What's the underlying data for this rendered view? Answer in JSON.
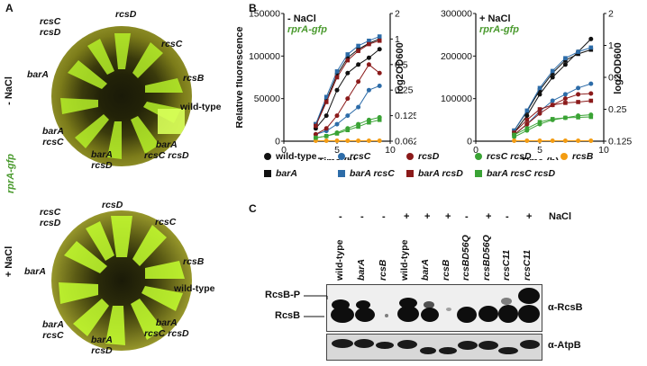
{
  "panels": {
    "a": "A",
    "b": "B",
    "c": "C"
  },
  "panel_a": {
    "condition_minus": "- NaCl",
    "condition_plus": "+ NaCl",
    "reporter": "rprA-gfp",
    "top_plate_labels": [
      {
        "text": "rcsC",
        "line2": "rcsD",
        "italic": true
      },
      {
        "text": "rcsD",
        "line2": "",
        "italic": true
      },
      {
        "text": "rcsC",
        "line2": "",
        "italic": true
      },
      {
        "text": "rcsB",
        "line2": "",
        "italic": true
      },
      {
        "text": "wild-type",
        "line2": "",
        "italic": false
      },
      {
        "text": "barA",
        "line2": "rcsC rcsD",
        "italic": true
      },
      {
        "text": "barA",
        "line2": "rcsD",
        "italic": true
      },
      {
        "text": "barA",
        "line2": "rcsC",
        "italic": true
      },
      {
        "text": "barA",
        "line2": "",
        "italic": true
      }
    ],
    "bottom_plate_labels": [
      {
        "text": "rcsC",
        "line2": "rcsD",
        "italic": true
      },
      {
        "text": "rcsD",
        "line2": "",
        "italic": true
      },
      {
        "text": "rcsC",
        "line2": "",
        "italic": true
      },
      {
        "text": "rcsB",
        "line2": "",
        "italic": true
      },
      {
        "text": "wild-type",
        "line2": "",
        "italic": false
      },
      {
        "text": "barA",
        "line2": "rcsC rcsD",
        "italic": true
      },
      {
        "text": "barA",
        "line2": "rcsD",
        "italic": true
      },
      {
        "text": "barA",
        "line2": "rcsC",
        "italic": true
      },
      {
        "text": "barA",
        "line2": "",
        "italic": true
      }
    ]
  },
  "chart_data": [
    {
      "type": "line",
      "condition": "- NaCl",
      "reporter": "rprA-gfp",
      "xlabel": "Time (h)",
      "ylabel": "Relative fluorescence",
      "y2label": "log2OD600",
      "xlim": [
        0,
        10
      ],
      "ylim": [
        0,
        150000
      ],
      "x_ticks": [
        0,
        5,
        10
      ],
      "y_ticks": [
        "0",
        "50000",
        "100000",
        "150000"
      ],
      "y2_ticks": [
        "2",
        "1",
        "0.5",
        "0.25",
        "0.125",
        "0.0625"
      ],
      "x": [
        3,
        4,
        5,
        6,
        7,
        8,
        9
      ],
      "series": [
        {
          "name": "wild-type",
          "marker": "circle",
          "color": "#111111",
          "values": [
            15000,
            30000,
            60000,
            80000,
            90000,
            98000,
            108000
          ]
        },
        {
          "name": "rcsC",
          "marker": "circle",
          "color": "#2d6ca8",
          "values": [
            8000,
            12000,
            20000,
            30000,
            40000,
            60000,
            65000
          ]
        },
        {
          "name": "rcsD",
          "marker": "circle",
          "color": "#8b1a1a",
          "values": [
            8000,
            15000,
            30000,
            50000,
            70000,
            90000,
            80000
          ]
        },
        {
          "name": "rcsC rcsD",
          "marker": "circle",
          "color": "#3aa335",
          "values": [
            4000,
            6000,
            10000,
            15000,
            20000,
            25000,
            28000
          ]
        },
        {
          "name": "rcsB",
          "marker": "circle",
          "color": "#f39c12",
          "values": [
            500,
            500,
            500,
            500,
            500,
            500,
            500
          ]
        },
        {
          "name": "barA",
          "marker": "square",
          "color": "#111111",
          "values": [
            20000,
            48000,
            78000,
            98000,
            108000,
            115000,
            120000
          ]
        },
        {
          "name": "barA rcsC",
          "marker": "square",
          "color": "#2d6ca8",
          "values": [
            20000,
            52000,
            82000,
            102000,
            112000,
            118000,
            123000
          ]
        },
        {
          "name": "barA rcsD",
          "marker": "square",
          "color": "#8b1a1a",
          "values": [
            18000,
            46000,
            75000,
            95000,
            106000,
            114000,
            118000
          ]
        },
        {
          "name": "barA rcsC rcsD",
          "marker": "square",
          "color": "#3aa335",
          "values": [
            4000,
            6000,
            9000,
            13000,
            17000,
            22000,
            25000
          ]
        }
      ]
    },
    {
      "type": "line",
      "condition": "+ NaCl",
      "reporter": "rprA-gfp",
      "xlabel": "Time (h)",
      "ylabel": "",
      "y2label": "log2OD600",
      "xlim": [
        0,
        10
      ],
      "ylim": [
        0,
        300000
      ],
      "x_ticks": [
        0,
        5,
        10
      ],
      "y_ticks": [
        "0",
        "100000",
        "200000",
        "300000"
      ],
      "y2_ticks": [
        "2",
        "1",
        "0.5",
        "0.25",
        "0.125"
      ],
      "x": [
        3,
        4,
        5,
        6,
        7,
        8,
        9
      ],
      "series": [
        {
          "name": "wild-type",
          "marker": "circle",
          "color": "#111111",
          "values": [
            20000,
            60000,
            110000,
            150000,
            180000,
            210000,
            240000
          ]
        },
        {
          "name": "rcsC",
          "marker": "circle",
          "color": "#2d6ca8",
          "values": [
            15000,
            40000,
            70000,
            95000,
            110000,
            125000,
            135000
          ]
        },
        {
          "name": "rcsD",
          "marker": "circle",
          "color": "#8b1a1a",
          "values": [
            15000,
            40000,
            65000,
            85000,
            100000,
            110000,
            112000
          ]
        },
        {
          "name": "rcsC rcsD",
          "marker": "circle",
          "color": "#3aa335",
          "values": [
            10000,
            25000,
            40000,
            50000,
            55000,
            60000,
            62000
          ]
        },
        {
          "name": "rcsB",
          "marker": "circle",
          "color": "#f39c12",
          "values": [
            1000,
            1000,
            1000,
            1000,
            1000,
            1000,
            1000
          ]
        },
        {
          "name": "barA",
          "marker": "square",
          "color": "#111111",
          "values": [
            25000,
            70000,
            120000,
            160000,
            190000,
            205000,
            215000
          ]
        },
        {
          "name": "barA rcsC",
          "marker": "square",
          "color": "#2d6ca8",
          "values": [
            25000,
            72000,
            125000,
            165000,
            195000,
            210000,
            220000
          ]
        },
        {
          "name": "barA rcsD",
          "marker": "square",
          "color": "#8b1a1a",
          "values": [
            20000,
            50000,
            75000,
            85000,
            90000,
            92000,
            95000
          ]
        },
        {
          "name": "barA rcsC rcsD",
          "marker": "square",
          "color": "#3aa335",
          "values": [
            15000,
            30000,
            45000,
            52000,
            55000,
            56000,
            57000
          ]
        }
      ]
    }
  ],
  "legend": [
    {
      "name": "wild-type",
      "marker": "circle",
      "color": "#111111",
      "italic": false
    },
    {
      "name": "rcsC",
      "marker": "circle",
      "color": "#2d6ca8",
      "italic": true
    },
    {
      "name": "rcsD",
      "marker": "circle",
      "color": "#8b1a1a",
      "italic": true
    },
    {
      "name": "rcsC rcsD",
      "marker": "circle",
      "color": "#3aa335",
      "italic": true
    },
    {
      "name": "rcsB",
      "marker": "circle",
      "color": "#f39c12",
      "italic": true
    },
    {
      "name": "barA",
      "marker": "square",
      "color": "#111111",
      "italic": true
    },
    {
      "name": "barA rcsC",
      "marker": "square",
      "color": "#2d6ca8",
      "italic": true
    },
    {
      "name": "barA rcsD",
      "marker": "square",
      "color": "#8b1a1a",
      "italic": true
    },
    {
      "name": "barA rcsC rcsD",
      "marker": "square",
      "color": "#3aa335",
      "italic": true
    }
  ],
  "panel_c": {
    "nacl_label": "NaCl",
    "lanes": [
      {
        "label": "wild-type",
        "italic": false,
        "nacl": "-"
      },
      {
        "label": "barA",
        "italic": true,
        "nacl": "-"
      },
      {
        "label": "rcsB",
        "italic": true,
        "nacl": "-"
      },
      {
        "label": "wild-type",
        "italic": false,
        "nacl": "+"
      },
      {
        "label": "barA",
        "italic": true,
        "nacl": "+"
      },
      {
        "label": "rcsB",
        "italic": true,
        "nacl": "+"
      },
      {
        "label": "rcsBD56Q",
        "italic": true,
        "nacl": "-"
      },
      {
        "label": "rcsBD56Q",
        "italic": true,
        "nacl": "+"
      },
      {
        "label": "rcsC11",
        "italic": true,
        "nacl": "-"
      },
      {
        "label": "rcsC11",
        "italic": true,
        "nacl": "+"
      }
    ],
    "band_labels": {
      "rcsb_p": "RcsB-P",
      "rcsb": "RcsB"
    },
    "antibody_labels": {
      "rcsb": "α-RcsB",
      "atpb": "α-AtpB"
    }
  }
}
